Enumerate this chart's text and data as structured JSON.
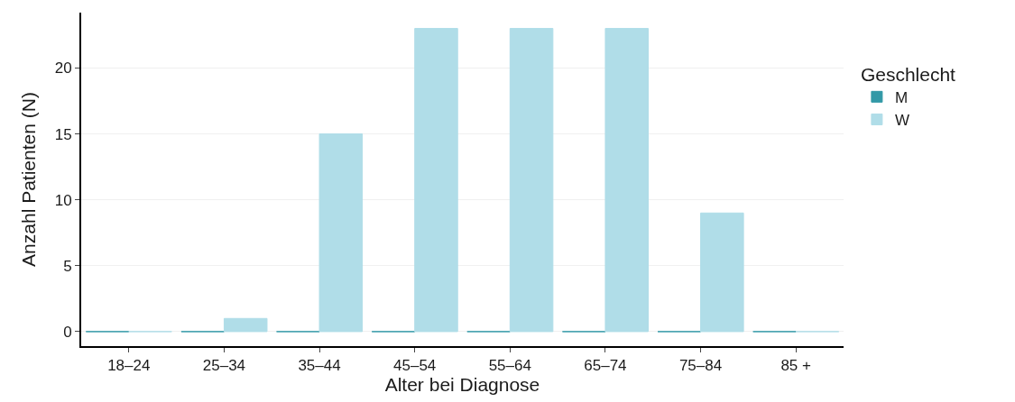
{
  "chart_data": {
    "type": "bar",
    "xlabel": "Alter bei Diagnose",
    "ylabel": "Anzahl Patienten (N)",
    "legend_title": "Geschlecht",
    "categories": [
      "18–24",
      "25–34",
      "35–44",
      "45–54",
      "55–64",
      "65–74",
      "75–84",
      "85 +"
    ],
    "series": [
      {
        "name": "M",
        "color": "#3299a7",
        "values": [
          0,
          0,
          0,
          0,
          0,
          0,
          0,
          0
        ]
      },
      {
        "name": "W",
        "color": "#b0dde8",
        "values": [
          0,
          1,
          15,
          23,
          23,
          23,
          9,
          0
        ]
      }
    ],
    "ylim": [
      -1.1,
      24.2
    ],
    "yticks": [
      0,
      5,
      10,
      15,
      20
    ],
    "grid": "y",
    "legend": "right"
  }
}
